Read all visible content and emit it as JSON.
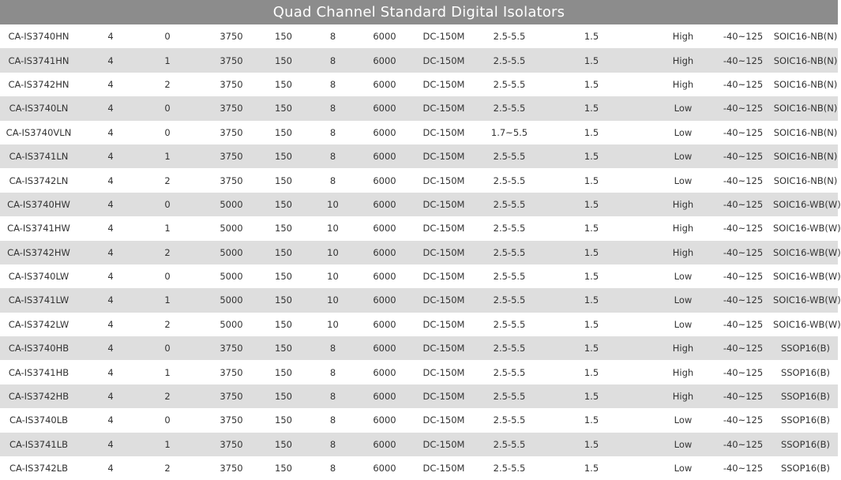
{
  "title": "Quad Channel Standard Digital Isolators",
  "rows": [
    [
      "CA-IS3740HN",
      "4",
      "0",
      "3750",
      "150",
      "8",
      "6000",
      "DC-150M",
      "2.5-5.5",
      "1.5",
      "High",
      "-40~125",
      "SOIC16-NB(N)"
    ],
    [
      "CA-IS3741HN",
      "4",
      "1",
      "3750",
      "150",
      "8",
      "6000",
      "DC-150M",
      "2.5-5.5",
      "1.5",
      "High",
      "-40~125",
      "SOIC16-NB(N)"
    ],
    [
      "CA-IS3742HN",
      "4",
      "2",
      "3750",
      "150",
      "8",
      "6000",
      "DC-150M",
      "2.5-5.5",
      "1.5",
      "High",
      "-40~125",
      "SOIC16-NB(N)"
    ],
    [
      "CA-IS3740LN",
      "4",
      "0",
      "3750",
      "150",
      "8",
      "6000",
      "DC-150M",
      "2.5-5.5",
      "1.5",
      "Low",
      "-40~125",
      "SOIC16-NB(N)"
    ],
    [
      "CA-IS3740VLN",
      "4",
      "0",
      "3750",
      "150",
      "8",
      "6000",
      "DC-150M",
      "1.7~5.5",
      "1.5",
      "Low",
      "-40~125",
      "SOIC16-NB(N)"
    ],
    [
      "CA-IS3741LN",
      "4",
      "1",
      "3750",
      "150",
      "8",
      "6000",
      "DC-150M",
      "2.5-5.5",
      "1.5",
      "Low",
      "-40~125",
      "SOIC16-NB(N)"
    ],
    [
      "CA-IS3742LN",
      "4",
      "2",
      "3750",
      "150",
      "8",
      "6000",
      "DC-150M",
      "2.5-5.5",
      "1.5",
      "Low",
      "-40~125",
      "SOIC16-NB(N)"
    ],
    [
      "CA-IS3740HW",
      "4",
      "0",
      "5000",
      "150",
      "10",
      "6000",
      "DC-150M",
      "2.5-5.5",
      "1.5",
      "High",
      "-40~125",
      "SOIC16-WB(W)"
    ],
    [
      "CA-IS3741HW",
      "4",
      "1",
      "5000",
      "150",
      "10",
      "6000",
      "DC-150M",
      "2.5-5.5",
      "1.5",
      "High",
      "-40~125",
      "SOIC16-WB(W)"
    ],
    [
      "CA-IS3742HW",
      "4",
      "2",
      "5000",
      "150",
      "10",
      "6000",
      "DC-150M",
      "2.5-5.5",
      "1.5",
      "High",
      "-40~125",
      "SOIC16-WB(W)"
    ],
    [
      "CA-IS3740LW",
      "4",
      "0",
      "5000",
      "150",
      "10",
      "6000",
      "DC-150M",
      "2.5-5.5",
      "1.5",
      "Low",
      "-40~125",
      "SOIC16-WB(W)"
    ],
    [
      "CA-IS3741LW",
      "4",
      "1",
      "5000",
      "150",
      "10",
      "6000",
      "DC-150M",
      "2.5-5.5",
      "1.5",
      "Low",
      "-40~125",
      "SOIC16-WB(W)"
    ],
    [
      "CA-IS3742LW",
      "4",
      "2",
      "5000",
      "150",
      "10",
      "6000",
      "DC-150M",
      "2.5-5.5",
      "1.5",
      "Low",
      "-40~125",
      "SOIC16-WB(W)"
    ],
    [
      "CA-IS3740HB",
      "4",
      "0",
      "3750",
      "150",
      "8",
      "6000",
      "DC-150M",
      "2.5-5.5",
      "1.5",
      "High",
      "-40~125",
      "SSOP16(B)"
    ],
    [
      "CA-IS3741HB",
      "4",
      "1",
      "3750",
      "150",
      "8",
      "6000",
      "DC-150M",
      "2.5-5.5",
      "1.5",
      "High",
      "-40~125",
      "SSOP16(B)"
    ],
    [
      "CA-IS3742HB",
      "4",
      "2",
      "3750",
      "150",
      "8",
      "6000",
      "DC-150M",
      "2.5-5.5",
      "1.5",
      "High",
      "-40~125",
      "SSOP16(B)"
    ],
    [
      "CA-IS3740LB",
      "4",
      "0",
      "3750",
      "150",
      "8",
      "6000",
      "DC-150M",
      "2.5-5.5",
      "1.5",
      "Low",
      "-40~125",
      "SSOP16(B)"
    ],
    [
      "CA-IS3741LB",
      "4",
      "1",
      "3750",
      "150",
      "8",
      "6000",
      "DC-150M",
      "2.5-5.5",
      "1.5",
      "Low",
      "-40~125",
      "SSOP16(B)"
    ],
    [
      "CA-IS3742LB",
      "4",
      "2",
      "3750",
      "150",
      "8",
      "6000",
      "DC-150M",
      "2.5-5.5",
      "1.5",
      "Low",
      "-40~125",
      "SSOP16(B)"
    ]
  ],
  "colors": {
    "title_bg": "#8c8c8c",
    "title_text": "#ffffff",
    "stripe": "#dedede",
    "text": "#333333"
  }
}
